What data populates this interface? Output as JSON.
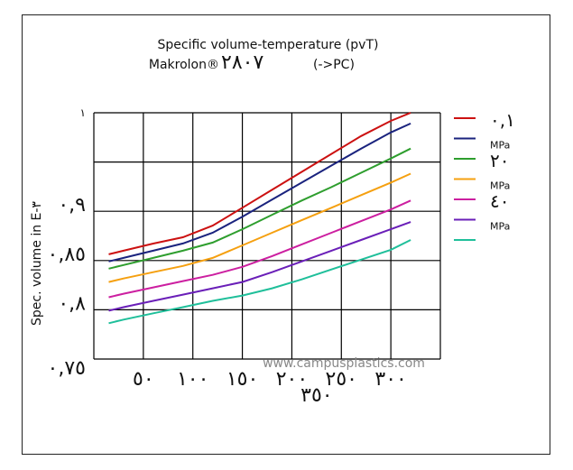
{
  "chart_data": {
    "type": "line",
    "title": "Specific volume-temperature (pvT)",
    "subtitle_prefix": "Makrolon®",
    "subtitle_number": "٢٨٠٧",
    "subtitle_suffix": "(->PC)",
    "ylabel": "Spec. volume in E-٣",
    "watermark": "www.campusplastics.com",
    "xlim": [
      0,
      350
    ],
    "ylim": [
      0.75,
      1.0
    ],
    "grid": true,
    "x_ticks": [
      {
        "value": 50,
        "label": "٥٠"
      },
      {
        "value": 100,
        "label": "١٠٠"
      },
      {
        "value": 150,
        "label": "١٥٠"
      },
      {
        "value": 200,
        "label": "٢٠٠"
      },
      {
        "value": 250,
        "label": "٢٥٠"
      },
      {
        "value": 300,
        "label": "٣٠٠"
      }
    ],
    "x_extra_label": {
      "value": 225,
      "label": "٣٥٠"
    },
    "y_ticks": [
      {
        "value": 0.75,
        "label": "٠,٧٥"
      },
      {
        "value": 0.8,
        "label": "٠,٨"
      },
      {
        "value": 0.85,
        "label": "٠,٨٥"
      },
      {
        "value": 0.9,
        "label": "٠,٩"
      },
      {
        "value": 1.0,
        "label": "١"
      }
    ],
    "legend_position": "right",
    "legend": [
      {
        "label": "٠,١",
        "color": "#cc1111"
      },
      {
        "label": "MPa",
        "color": "#1a237e"
      },
      {
        "label": "٢٠",
        "color": "#2e9e2e"
      },
      {
        "label": "MPa",
        "color": "#f5a010"
      },
      {
        "label": "٤٠",
        "color": "#cc1fa0"
      },
      {
        "label": "MPa",
        "color": "#6a1fb8"
      },
      {
        "label": "",
        "color": "#1fbf9a"
      }
    ],
    "x": [
      15,
      30,
      60,
      90,
      120,
      150,
      180,
      210,
      240,
      270,
      300,
      320
    ],
    "series": [
      {
        "color": "#cc1111",
        "values": [
          0.8563,
          0.86,
          0.8672,
          0.8736,
          0.8854,
          0.9036,
          0.9218,
          0.94,
          0.9582,
          0.9764,
          0.9918,
          1.0
        ]
      },
      {
        "color": "#1a237e",
        "values": [
          0.8491,
          0.8527,
          0.86,
          0.8673,
          0.8782,
          0.8945,
          0.9118,
          0.9291,
          0.9464,
          0.9636,
          0.98,
          0.9891
        ]
      },
      {
        "color": "#2e9e2e",
        "values": [
          0.8418,
          0.8454,
          0.8527,
          0.86,
          0.8682,
          0.8818,
          0.8964,
          0.9109,
          0.9245,
          0.9391,
          0.9536,
          0.9636
        ]
      },
      {
        "color": "#f5a010",
        "values": [
          0.8282,
          0.8318,
          0.8382,
          0.8445,
          0.8527,
          0.8654,
          0.8782,
          0.8909,
          0.9036,
          0.9164,
          0.9291,
          0.9382
        ]
      },
      {
        "color": "#cc1fa0",
        "values": [
          0.8127,
          0.8163,
          0.8227,
          0.8291,
          0.8354,
          0.8436,
          0.8545,
          0.8664,
          0.8782,
          0.89,
          0.9018,
          0.9109
        ]
      },
      {
        "color": "#6a1fb8",
        "values": [
          0.7991,
          0.8027,
          0.8091,
          0.8154,
          0.8218,
          0.8282,
          0.8382,
          0.8491,
          0.86,
          0.8709,
          0.8818,
          0.8891
        ]
      },
      {
        "color": "#1fbf9a",
        "values": [
          0.7864,
          0.79,
          0.7964,
          0.8027,
          0.8091,
          0.8145,
          0.8218,
          0.8309,
          0.8409,
          0.8509,
          0.8609,
          0.8709
        ]
      }
    ]
  }
}
